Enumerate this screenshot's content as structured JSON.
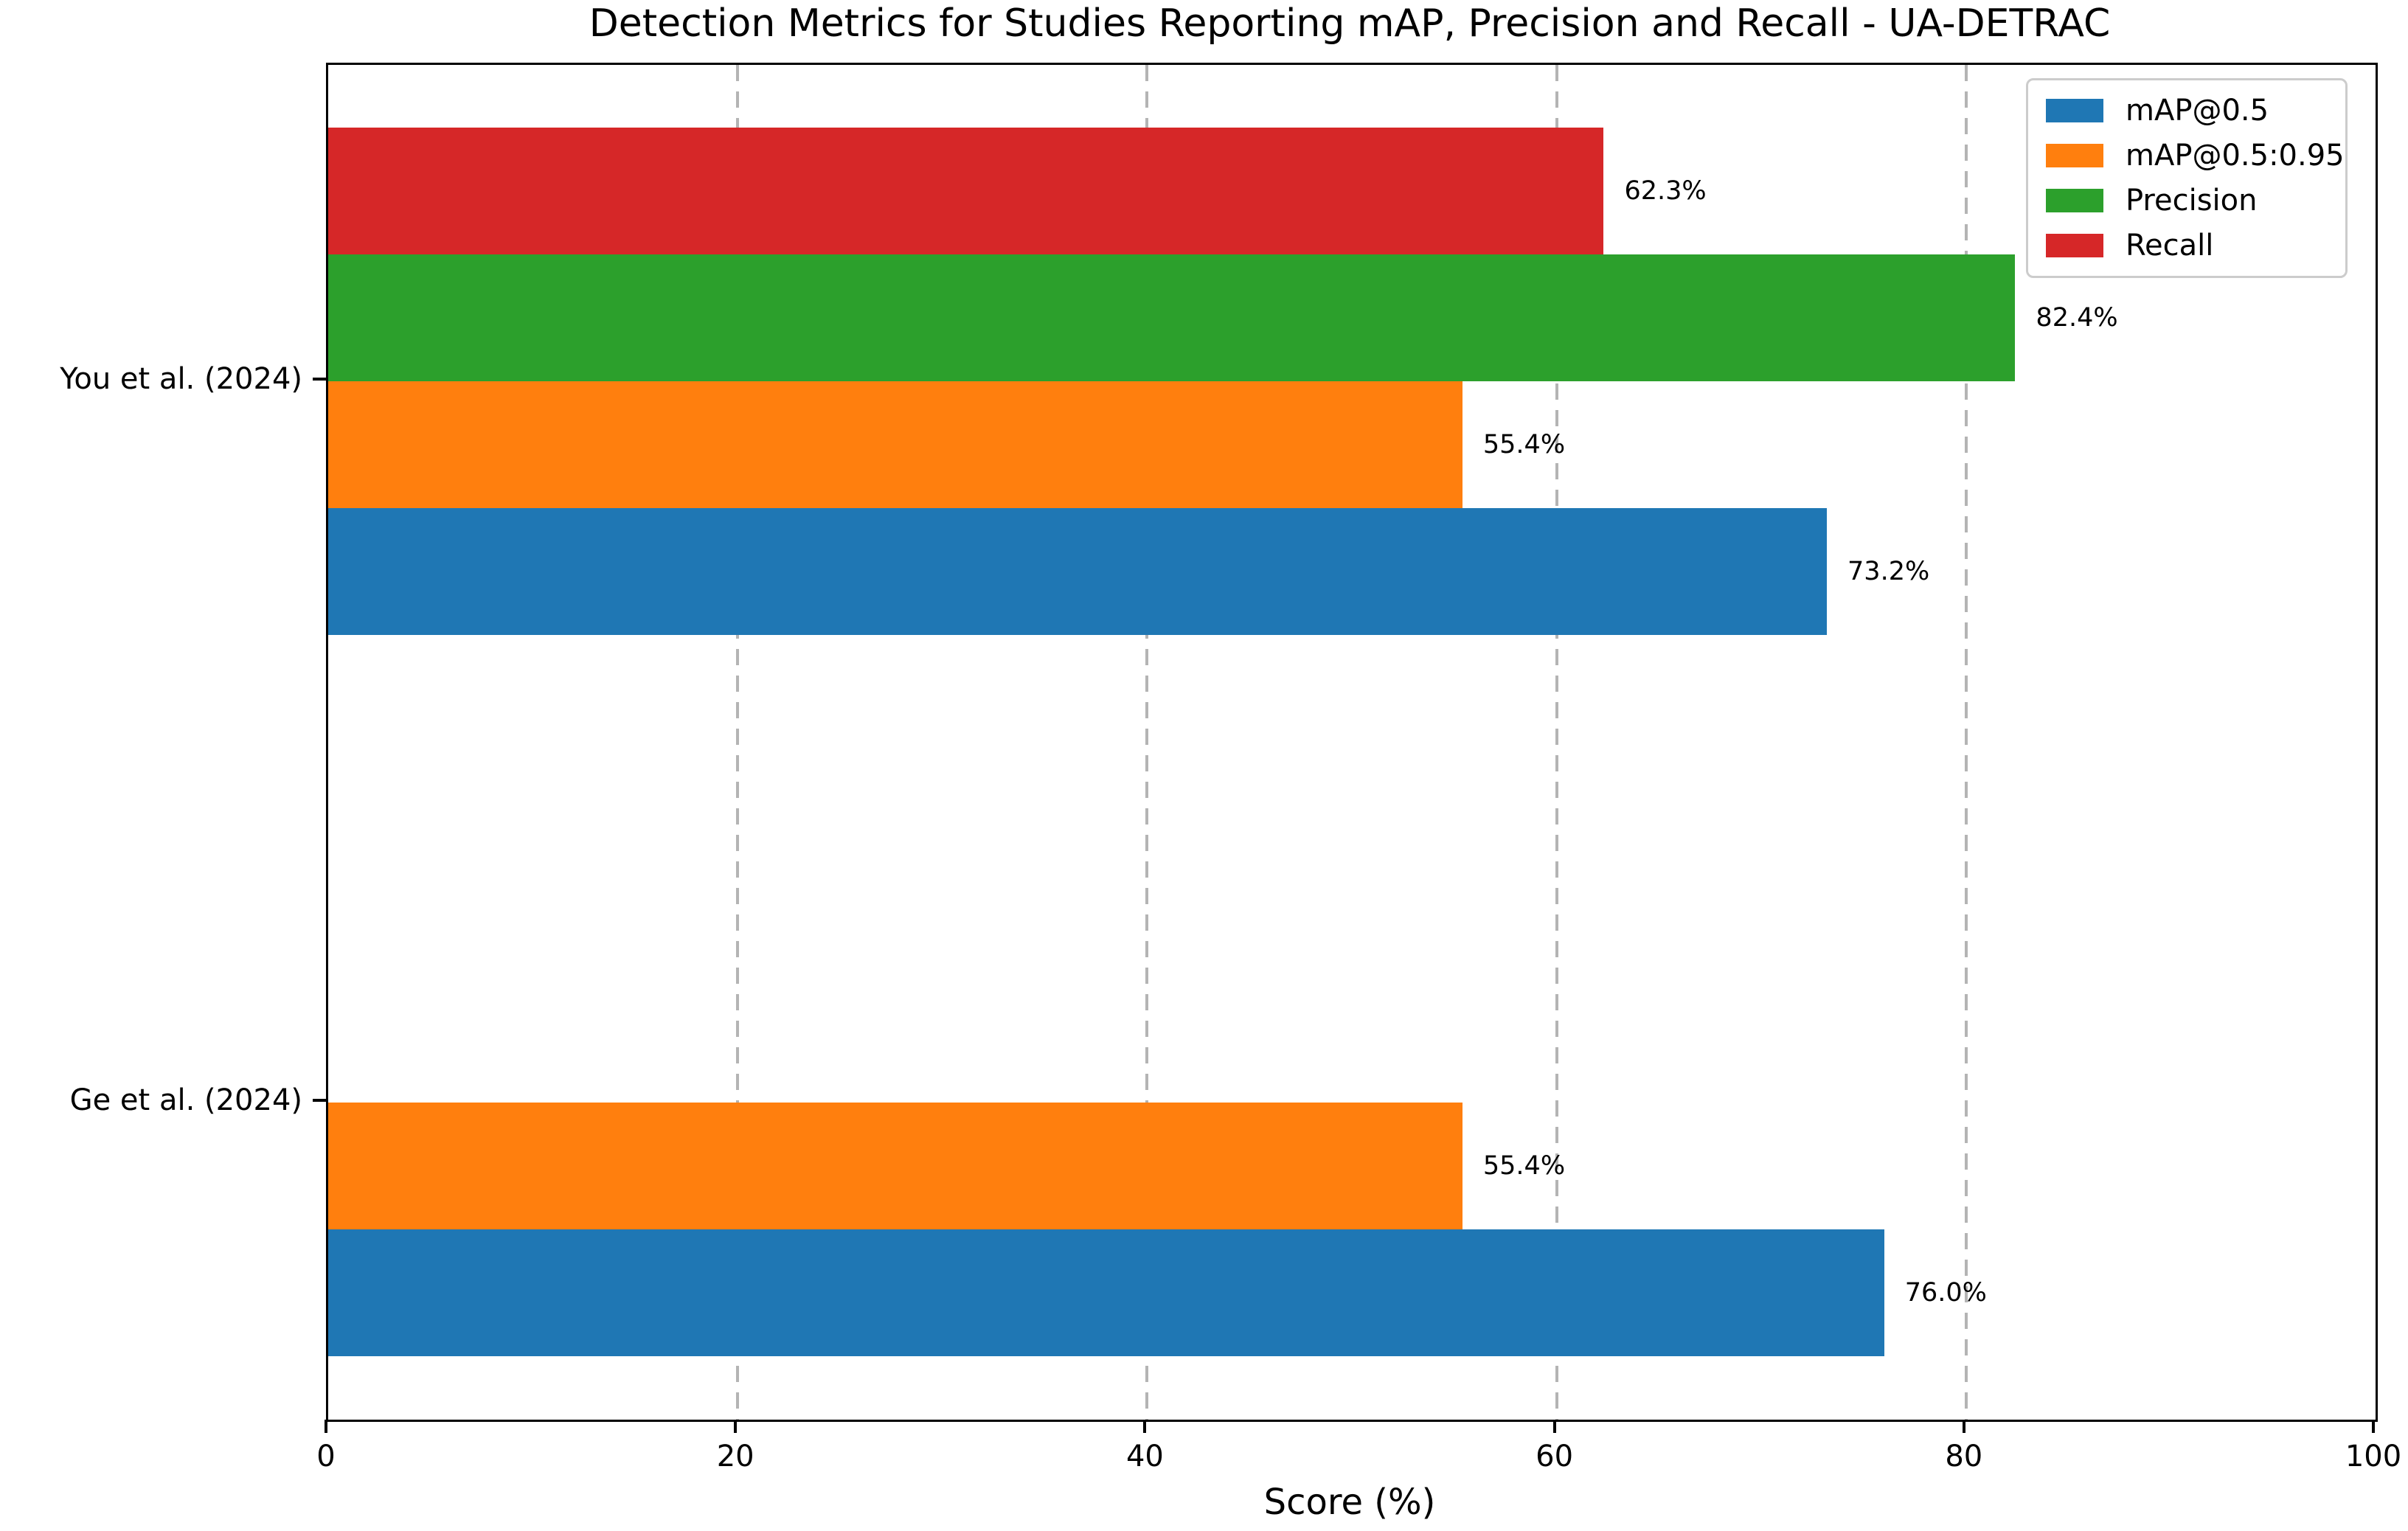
{
  "chart_data": {
    "type": "bar",
    "orientation": "horizontal",
    "title": "Detection Metrics for Studies Reporting mAP, Precision and Recall - UA-DETRAC",
    "xlabel": "Score (%)",
    "xlim": [
      0,
      100
    ],
    "xticks": [
      0,
      20,
      40,
      60,
      80,
      100
    ],
    "xtick_labels": [
      "0",
      "20",
      "40",
      "60",
      "80",
      "100"
    ],
    "gridlines": [
      20,
      40,
      60,
      80
    ],
    "grid_style": "vertical dashed gray",
    "legend_position": "upper-right",
    "categories": [
      "You et al. (2024)",
      "Ge et al. (2024)"
    ],
    "series": [
      {
        "name": "mAP@0.5",
        "color": "#1f77b4",
        "values": [
          73.2,
          76.0
        ]
      },
      {
        "name": "mAP@0.5:0.95",
        "color": "#ff7f0e",
        "values": [
          55.4,
          55.4
        ]
      },
      {
        "name": "Precision",
        "color": "#2ca02c",
        "values": [
          82.4,
          null
        ]
      },
      {
        "name": "Recall",
        "color": "#d62728",
        "values": [
          62.3,
          null
        ]
      }
    ],
    "bar_value_labels": [
      [
        "73.2%",
        "76.0%"
      ],
      [
        "55.4%",
        "55.4%"
      ],
      [
        "82.4%",
        null
      ],
      [
        "62.3%",
        null
      ]
    ]
  }
}
